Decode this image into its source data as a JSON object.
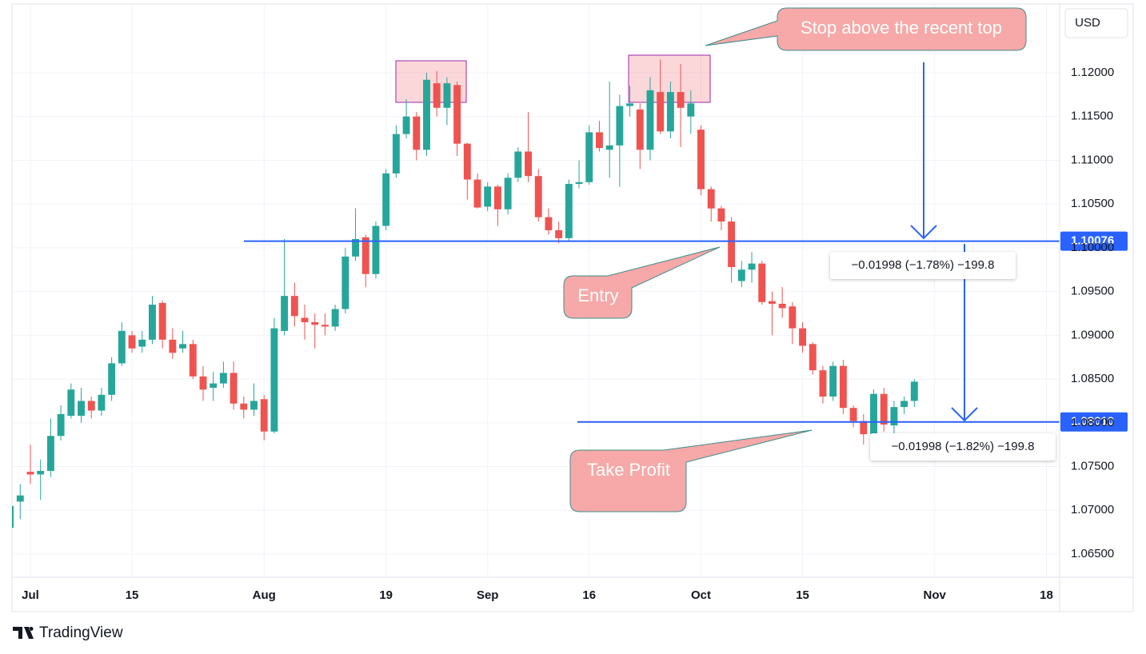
{
  "chart_data": {
    "type": "candlestick",
    "currency": "USD",
    "brand": "TradingView",
    "up_color": "#26a69a",
    "down_color": "#ef5350",
    "grid": true,
    "xlim": [
      -1.81,
      101.3
    ],
    "ylim": [
      1.06235,
      1.12786
    ],
    "xticks": [
      {
        "value": 0,
        "label": "Jul"
      },
      {
        "value": 10,
        "label": "15"
      },
      {
        "value": 23,
        "label": "Aug"
      },
      {
        "value": 35,
        "label": "19"
      },
      {
        "value": 45,
        "label": "Sep"
      },
      {
        "value": 55,
        "label": "16"
      },
      {
        "value": 66,
        "label": "Oct"
      },
      {
        "value": 76,
        "label": "15"
      },
      {
        "value": 89,
        "label": "Nov"
      },
      {
        "value": 100,
        "label": "18"
      }
    ],
    "yticks": [
      {
        "value": 1.065,
        "label": "1.06500"
      },
      {
        "value": 1.07,
        "label": "1.07000"
      },
      {
        "value": 1.075,
        "label": "1.07500"
      },
      {
        "value": 1.08,
        "label": "1.08000"
      },
      {
        "value": 1.085,
        "label": "1.08500"
      },
      {
        "value": 1.09,
        "label": "1.09000"
      },
      {
        "value": 1.095,
        "label": "1.09500"
      },
      {
        "value": 1.1,
        "label": "1.10000"
      },
      {
        "value": 1.105,
        "label": "1.10500"
      },
      {
        "value": 1.11,
        "label": "1.11000"
      },
      {
        "value": 1.115,
        "label": "1.11500"
      },
      {
        "value": 1.12,
        "label": "1.12000"
      }
    ],
    "x": [
      -2,
      -1,
      0,
      1,
      2,
      3,
      4,
      5,
      6,
      7,
      8,
      9,
      10,
      11,
      12,
      13,
      14,
      15,
      16,
      17,
      18,
      19,
      20,
      21,
      22,
      23,
      24,
      25,
      26,
      27,
      28,
      29,
      30,
      31,
      32,
      33,
      34,
      35,
      36,
      37,
      38,
      39,
      40,
      41,
      42,
      43,
      44,
      45,
      46,
      47,
      48,
      49,
      50,
      51,
      52,
      53,
      54,
      55,
      56,
      57,
      58,
      59,
      60,
      61,
      62,
      63,
      64,
      65,
      66,
      67,
      68,
      69,
      70,
      71,
      72,
      73,
      74,
      75,
      76,
      77,
      78,
      79,
      80,
      81,
      82,
      83,
      84,
      85,
      86,
      87
    ],
    "open": [
      1.068,
      1.071,
      1.0744,
      1.0741,
      1.0745,
      1.0785,
      1.0808,
      1.0808,
      1.0825,
      1.0814,
      1.0832,
      1.0868,
      1.09,
      1.0887,
      1.0895,
      1.0937,
      1.0895,
      1.0885,
      1.089,
      1.0853,
      1.084,
      1.0845,
      1.0857,
      1.0822,
      1.0815,
      1.0827,
      1.079,
      1.0905,
      1.0945,
      1.092,
      1.0915,
      1.0912,
      1.091,
      1.093,
      1.099,
      1.1012,
      1.097,
      1.1025,
      1.1085,
      1.113,
      1.115,
      1.1112,
      1.1188,
      1.116,
      1.1186,
      1.1119,
      1.1078,
      1.1047,
      1.107,
      1.1044,
      1.108,
      1.111,
      1.1082,
      1.1035,
      1.102,
      1.1011,
      1.1073,
      1.1075,
      1.1132,
      1.1112,
      1.1117,
      1.1162,
      1.1158,
      1.1112,
      1.1178,
      1.1133,
      1.1178,
      1.115,
      1.1135,
      1.1067,
      1.1045,
      1.103,
      1.0962,
      1.0975,
      1.0982,
      1.0939,
      1.0936,
      1.0933,
      1.0908,
      1.089,
      1.086,
      1.083,
      1.0865,
      1.0817,
      1.0802,
      1.0787,
      1.0833,
      1.0797,
      1.0818,
      1.0825
    ],
    "high": [
      1.0712,
      1.073,
      1.0775,
      1.0758,
      1.0805,
      1.082,
      1.0845,
      1.084,
      1.083,
      1.084,
      1.0875,
      1.0915,
      1.0905,
      1.0905,
      1.0945,
      1.094,
      1.0908,
      1.0905,
      1.0895,
      1.0865,
      1.0858,
      1.087,
      1.087,
      1.083,
      1.0845,
      1.0832,
      1.092,
      1.101,
      1.096,
      1.0935,
      1.0925,
      1.0925,
      1.0935,
      1.1,
      1.1045,
      1.1015,
      1.103,
      1.109,
      1.114,
      1.117,
      1.1155,
      1.12,
      1.1202,
      1.1195,
      1.119,
      1.112,
      1.1085,
      1.1075,
      1.1072,
      1.1085,
      1.1115,
      1.1155,
      1.109,
      1.1045,
      1.103,
      1.1078,
      1.11,
      1.114,
      1.1145,
      1.119,
      1.1175,
      1.1185,
      1.1165,
      1.1195,
      1.1215,
      1.119,
      1.121,
      1.118,
      1.114,
      1.107,
      1.1048,
      1.1035,
      1.0985,
      1.0995,
      1.0985,
      1.095,
      1.0955,
      1.0938,
      1.0915,
      1.0892,
      1.0865,
      1.087,
      1.0872,
      1.082,
      1.081,
      1.0838,
      1.084,
      1.0825,
      1.083,
      1.085
    ],
    "low": [
      1.0678,
      1.069,
      1.073,
      1.0712,
      1.0738,
      1.078,
      1.0805,
      1.08,
      1.0805,
      1.0808,
      1.0825,
      1.0865,
      1.088,
      1.088,
      1.089,
      1.0885,
      1.0873,
      1.088,
      1.085,
      1.0825,
      1.0825,
      1.084,
      1.0815,
      1.0805,
      1.0808,
      1.078,
      1.0788,
      1.09,
      1.091,
      1.0895,
      1.0885,
      1.09,
      1.0905,
      1.0925,
      1.0985,
      1.0955,
      1.0965,
      1.102,
      1.108,
      1.1125,
      1.11,
      1.1105,
      1.115,
      1.114,
      1.1105,
      1.1055,
      1.1045,
      1.1042,
      1.1025,
      1.1038,
      1.1075,
      1.1075,
      1.103,
      1.1015,
      1.1005,
      1.1008,
      1.1068,
      1.1072,
      1.111,
      1.108,
      1.107,
      1.115,
      1.109,
      1.11,
      1.113,
      1.1125,
      1.1115,
      1.113,
      1.106,
      1.103,
      1.102,
      1.096,
      1.0955,
      1.096,
      1.0935,
      1.09,
      1.092,
      1.089,
      1.088,
      1.0855,
      1.0822,
      1.0825,
      1.081,
      1.0795,
      1.0775,
      1.078,
      1.079,
      1.0785,
      1.081,
      1.0818
    ],
    "close": [
      1.0705,
      1.0717,
      1.0741,
      1.0745,
      1.0785,
      1.081,
      1.0838,
      1.0825,
      1.0814,
      1.0832,
      1.0868,
      1.0905,
      1.0885,
      1.0895,
      1.0935,
      1.0895,
      1.088,
      1.089,
      1.0853,
      1.0838,
      1.0845,
      1.0857,
      1.0822,
      1.0815,
      1.0825,
      1.079,
      1.0908,
      1.0945,
      1.0922,
      1.0915,
      1.0912,
      1.091,
      1.093,
      1.099,
      1.101,
      1.097,
      1.1025,
      1.1085,
      1.113,
      1.115,
      1.1112,
      1.1192,
      1.116,
      1.1188,
      1.1119,
      1.1078,
      1.1046,
      1.107,
      1.1044,
      1.108,
      1.111,
      1.1082,
      1.1035,
      1.102,
      1.1011,
      1.1073,
      1.1075,
      1.1132,
      1.1114,
      1.1117,
      1.1162,
      1.1165,
      1.1112,
      1.118,
      1.1133,
      1.1178,
      1.116,
      1.1165,
      1.1067,
      1.1045,
      1.103,
      1.0978,
      1.0975,
      1.0982,
      1.0938,
      1.0936,
      1.0931,
      1.0908,
      1.0888,
      1.086,
      1.083,
      1.0865,
      1.0817,
      1.0802,
      1.0787,
      1.0833,
      1.0798,
      1.0818,
      1.0825,
      1.0847
    ],
    "levels": [
      {
        "value": 1.10076,
        "label": "1.10076",
        "color": "#2962ff"
      },
      {
        "value": 1.0801,
        "label": "1.08010",
        "color": "#2962ff"
      }
    ],
    "annotations": {
      "stop": "Stop above the recent top",
      "entry": "Entry",
      "take_profit": "Take Profit",
      "measure_stop": "−0.01998 (−1.78%) −199.8",
      "measure_target": "−0.01998 (−1.82%) −199.8"
    }
  }
}
